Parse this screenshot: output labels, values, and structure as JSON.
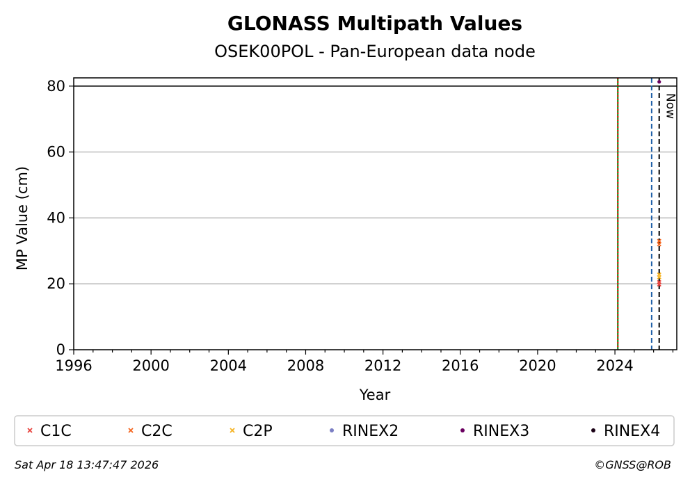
{
  "chart_data": {
    "type": "scatter",
    "title": "GLONASS Multipath Values",
    "subtitle": "OSEK00POL - Pan-European data node",
    "xlabel": "Year",
    "ylabel": "MP Value (cm)",
    "xlim": [
      1996,
      2027.2
    ],
    "ylim": [
      0,
      82.5
    ],
    "x_ticks": [
      1996,
      2000,
      2004,
      2008,
      2012,
      2016,
      2020,
      2024
    ],
    "y_ticks": [
      0,
      20,
      40,
      60,
      80
    ],
    "grid": "horizontal",
    "threshold_line": 80,
    "vertical_lines": [
      {
        "x": 2024.15,
        "color": "#008000",
        "style": "solid"
      },
      {
        "x": 2024.15,
        "color": "#ff0000",
        "style": "dotted"
      },
      {
        "x": 2025.9,
        "color": "#1f5fa8",
        "style": "dashed"
      },
      {
        "x": 2026.29,
        "color": "#000000",
        "style": "dashed",
        "label": "Now"
      }
    ],
    "series": [
      {
        "name": "C1C",
        "marker": "x",
        "color": "#e8413c",
        "points": [
          [
            2026.29,
            20.5
          ],
          [
            2026.29,
            19.8
          ]
        ]
      },
      {
        "name": "C2C",
        "marker": "x",
        "color": "#f4651e",
        "points": [
          [
            2026.29,
            33.0
          ],
          [
            2026.29,
            32.0
          ]
        ]
      },
      {
        "name": "C2P",
        "marker": "x",
        "color": "#f5b323",
        "points": [
          [
            2026.29,
            22.8
          ],
          [
            2026.29,
            22.0
          ]
        ]
      },
      {
        "name": "RINEX2",
        "marker": "o",
        "color": "#7b7fc4",
        "points": []
      },
      {
        "name": "RINEX3",
        "marker": "o",
        "color": "#6a0060",
        "points": [
          [
            2026.29,
            81.3
          ]
        ]
      },
      {
        "name": "RINEX4",
        "marker": "o",
        "color": "#1a0015",
        "points": []
      }
    ]
  },
  "footer": {
    "timestamp": "Sat Apr 18 13:47:47 2026",
    "credit": "©GNSS@ROB"
  }
}
